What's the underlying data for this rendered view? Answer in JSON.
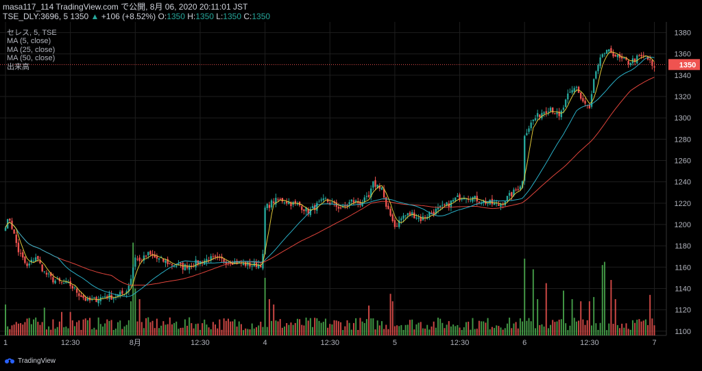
{
  "header": {
    "line1": "masa117_114 TradingView.com で公開, 8月 06, 2020 20:11:01 JST",
    "symbol_prefix": "TSE_DLY:3696, 5 1350",
    "arrow": "▲",
    "change": "+106 (+8.52%)",
    "o_label": "O:",
    "o_value": "1350",
    "h_label": "H:",
    "h_value": "1350",
    "l_label": "L:",
    "l_value": "1350",
    "c_label": "C:",
    "c_value": "1350"
  },
  "legend": [
    "セレス, 5, TSE",
    "MA (5, close)",
    "MA (25, close)",
    "MA (50, close)",
    "出来高"
  ],
  "footer": {
    "brand": "TradingView"
  },
  "colors": {
    "up": "#26a69a",
    "down": "#ef5350",
    "vol_up": "#4caf50",
    "vol_down": "#ef5350",
    "ma5": "#e2c93a",
    "ma25": "#2ab1c9",
    "ma50": "#e2453c",
    "last_price_bg": "#ef5350",
    "grid": "#1e1e1e"
  },
  "chart_data": {
    "type": "candlestick",
    "y_ticks": [
      1100,
      1120,
      1140,
      1160,
      1180,
      1200,
      1220,
      1240,
      1260,
      1280,
      1300,
      1320,
      1340,
      1360,
      1380
    ],
    "ylim": [
      1096,
      1390
    ],
    "x_ticks": [
      {
        "label": "1",
        "pos": 0
      },
      {
        "label": "12:30",
        "pos": 30
      },
      {
        "label": "8月",
        "pos": 60
      },
      {
        "label": "12:30",
        "pos": 90
      },
      {
        "label": "4",
        "pos": 120
      },
      {
        "label": "12:30",
        "pos": 150
      },
      {
        "label": "5",
        "pos": 180
      },
      {
        "label": "12:30",
        "pos": 210
      },
      {
        "label": "6",
        "pos": 240
      },
      {
        "label": "12:30",
        "pos": 270
      },
      {
        "label": "7",
        "pos": 300
      }
    ],
    "last_price": 1350,
    "close_anchors": [
      [
        0,
        1200
      ],
      [
        2,
        1205
      ],
      [
        6,
        1175
      ],
      [
        10,
        1160
      ],
      [
        14,
        1170
      ],
      [
        18,
        1155
      ],
      [
        22,
        1148
      ],
      [
        26,
        1145
      ],
      [
        30,
        1143
      ],
      [
        34,
        1135
      ],
      [
        38,
        1128
      ],
      [
        42,
        1130
      ],
      [
        46,
        1133
      ],
      [
        50,
        1132
      ],
      [
        54,
        1135
      ],
      [
        56,
        1138
      ],
      [
        58,
        1150
      ],
      [
        60,
        1170
      ],
      [
        62,
        1165
      ],
      [
        66,
        1172
      ],
      [
        70,
        1168
      ],
      [
        74,
        1165
      ],
      [
        78,
        1162
      ],
      [
        82,
        1160
      ],
      [
        86,
        1163
      ],
      [
        90,
        1165
      ],
      [
        94,
        1168
      ],
      [
        98,
        1167
      ],
      [
        102,
        1166
      ],
      [
        106,
        1165
      ],
      [
        110,
        1163
      ],
      [
        114,
        1162
      ],
      [
        118,
        1163
      ],
      [
        119,
        1170
      ],
      [
        120,
        1215
      ],
      [
        124,
        1222
      ],
      [
        128,
        1223
      ],
      [
        132,
        1220
      ],
      [
        136,
        1218
      ],
      [
        140,
        1212
      ],
      [
        144,
        1218
      ],
      [
        148,
        1223
      ],
      [
        152,
        1218
      ],
      [
        156,
        1215
      ],
      [
        160,
        1222
      ],
      [
        164,
        1220
      ],
      [
        168,
        1225
      ],
      [
        170,
        1238
      ],
      [
        174,
        1235
      ],
      [
        176,
        1215
      ],
      [
        179,
        1205
      ],
      [
        180,
        1198
      ],
      [
        184,
        1208
      ],
      [
        188,
        1210
      ],
      [
        192,
        1205
      ],
      [
        196,
        1210
      ],
      [
        200,
        1214
      ],
      [
        204,
        1218
      ],
      [
        208,
        1224
      ],
      [
        212,
        1227
      ],
      [
        216,
        1225
      ],
      [
        220,
        1222
      ],
      [
        224,
        1220
      ],
      [
        228,
        1218
      ],
      [
        232,
        1225
      ],
      [
        236,
        1232
      ],
      [
        239,
        1240
      ],
      [
        240,
        1285
      ],
      [
        244,
        1298
      ],
      [
        248,
        1305
      ],
      [
        252,
        1310
      ],
      [
        256,
        1300
      ],
      [
        260,
        1320
      ],
      [
        264,
        1330
      ],
      [
        266,
        1318
      ],
      [
        270,
        1308
      ],
      [
        272,
        1335
      ],
      [
        276,
        1360
      ],
      [
        280,
        1362
      ],
      [
        284,
        1355
      ],
      [
        288,
        1352
      ],
      [
        292,
        1356
      ],
      [
        296,
        1358
      ],
      [
        298,
        1352
      ],
      [
        300,
        1345
      ]
    ],
    "volume_spikes": [
      [
        0,
        1125
      ],
      [
        18,
        1122
      ],
      [
        26,
        1118
      ],
      [
        30,
        1118
      ],
      [
        58,
        1128
      ],
      [
        59,
        1183
      ],
      [
        60,
        1140
      ],
      [
        62,
        1130
      ],
      [
        120,
        1150
      ],
      [
        122,
        1130
      ],
      [
        124,
        1125
      ],
      [
        168,
        1124
      ],
      [
        178,
        1135
      ],
      [
        179,
        1128
      ],
      [
        240,
        1168
      ],
      [
        244,
        1158
      ],
      [
        246,
        1130
      ],
      [
        250,
        1145
      ],
      [
        258,
        1138
      ],
      [
        262,
        1130
      ],
      [
        266,
        1128
      ],
      [
        270,
        1128
      ],
      [
        272,
        1132
      ],
      [
        276,
        1162
      ],
      [
        277,
        1165
      ],
      [
        280,
        1148
      ],
      [
        282,
        1130
      ],
      [
        298,
        1134
      ]
    ]
  }
}
